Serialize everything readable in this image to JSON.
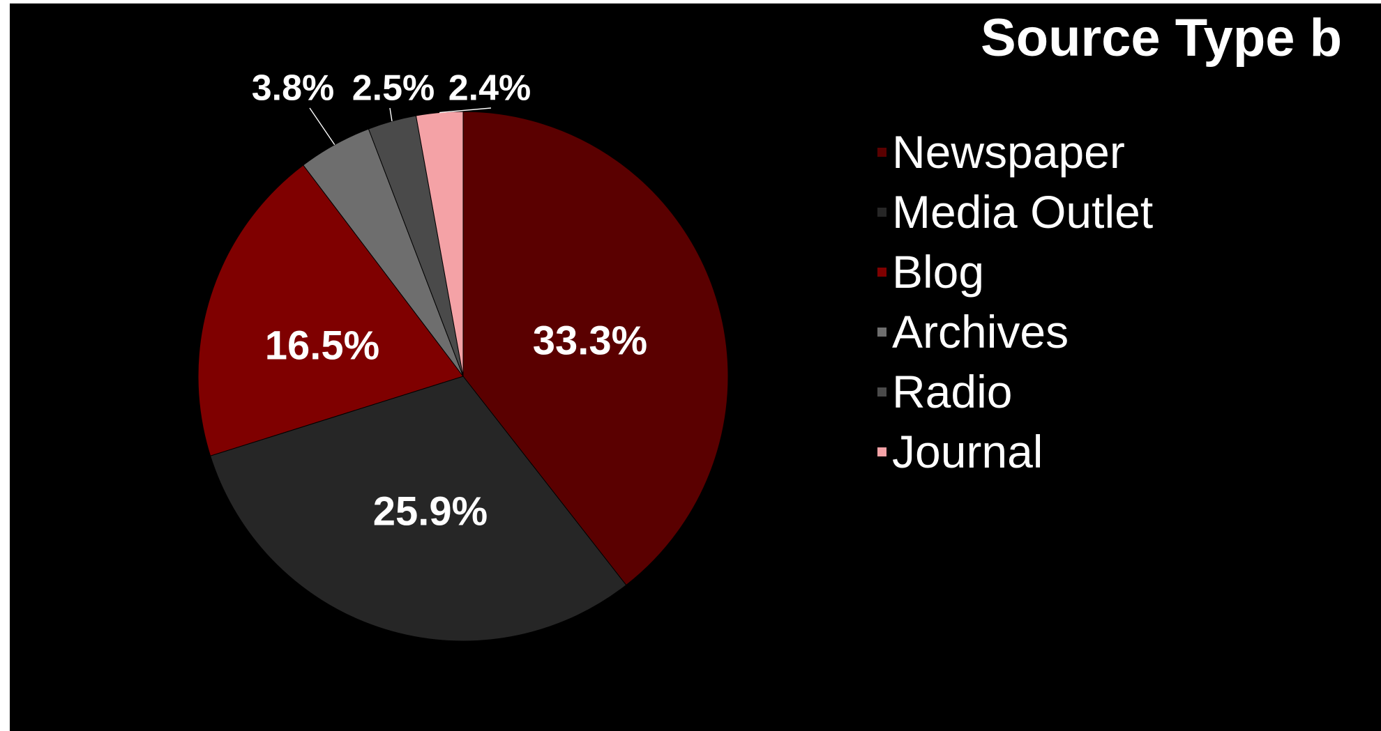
{
  "chart_data": {
    "type": "pie",
    "title": "Source Type b",
    "legend_position": "right",
    "slices": [
      {
        "name": "Newspaper",
        "value": 33.3,
        "label": "33.3%",
        "color": "#5a0000"
      },
      {
        "name": "Media Outlet",
        "value": 25.9,
        "label": "25.9%",
        "color": "#262626"
      },
      {
        "name": "Blog",
        "value": 16.5,
        "label": "16.5%",
        "color": "#7f0000"
      },
      {
        "name": "Archives",
        "value": 3.8,
        "label": "3.8%",
        "color": "#6e6e6e"
      },
      {
        "name": "Radio",
        "value": 2.5,
        "label": "2.5%",
        "color": "#4a4a4a"
      },
      {
        "name": "Journal",
        "value": 2.4,
        "label": "2.4%",
        "color": "#f4a2a6"
      }
    ]
  }
}
